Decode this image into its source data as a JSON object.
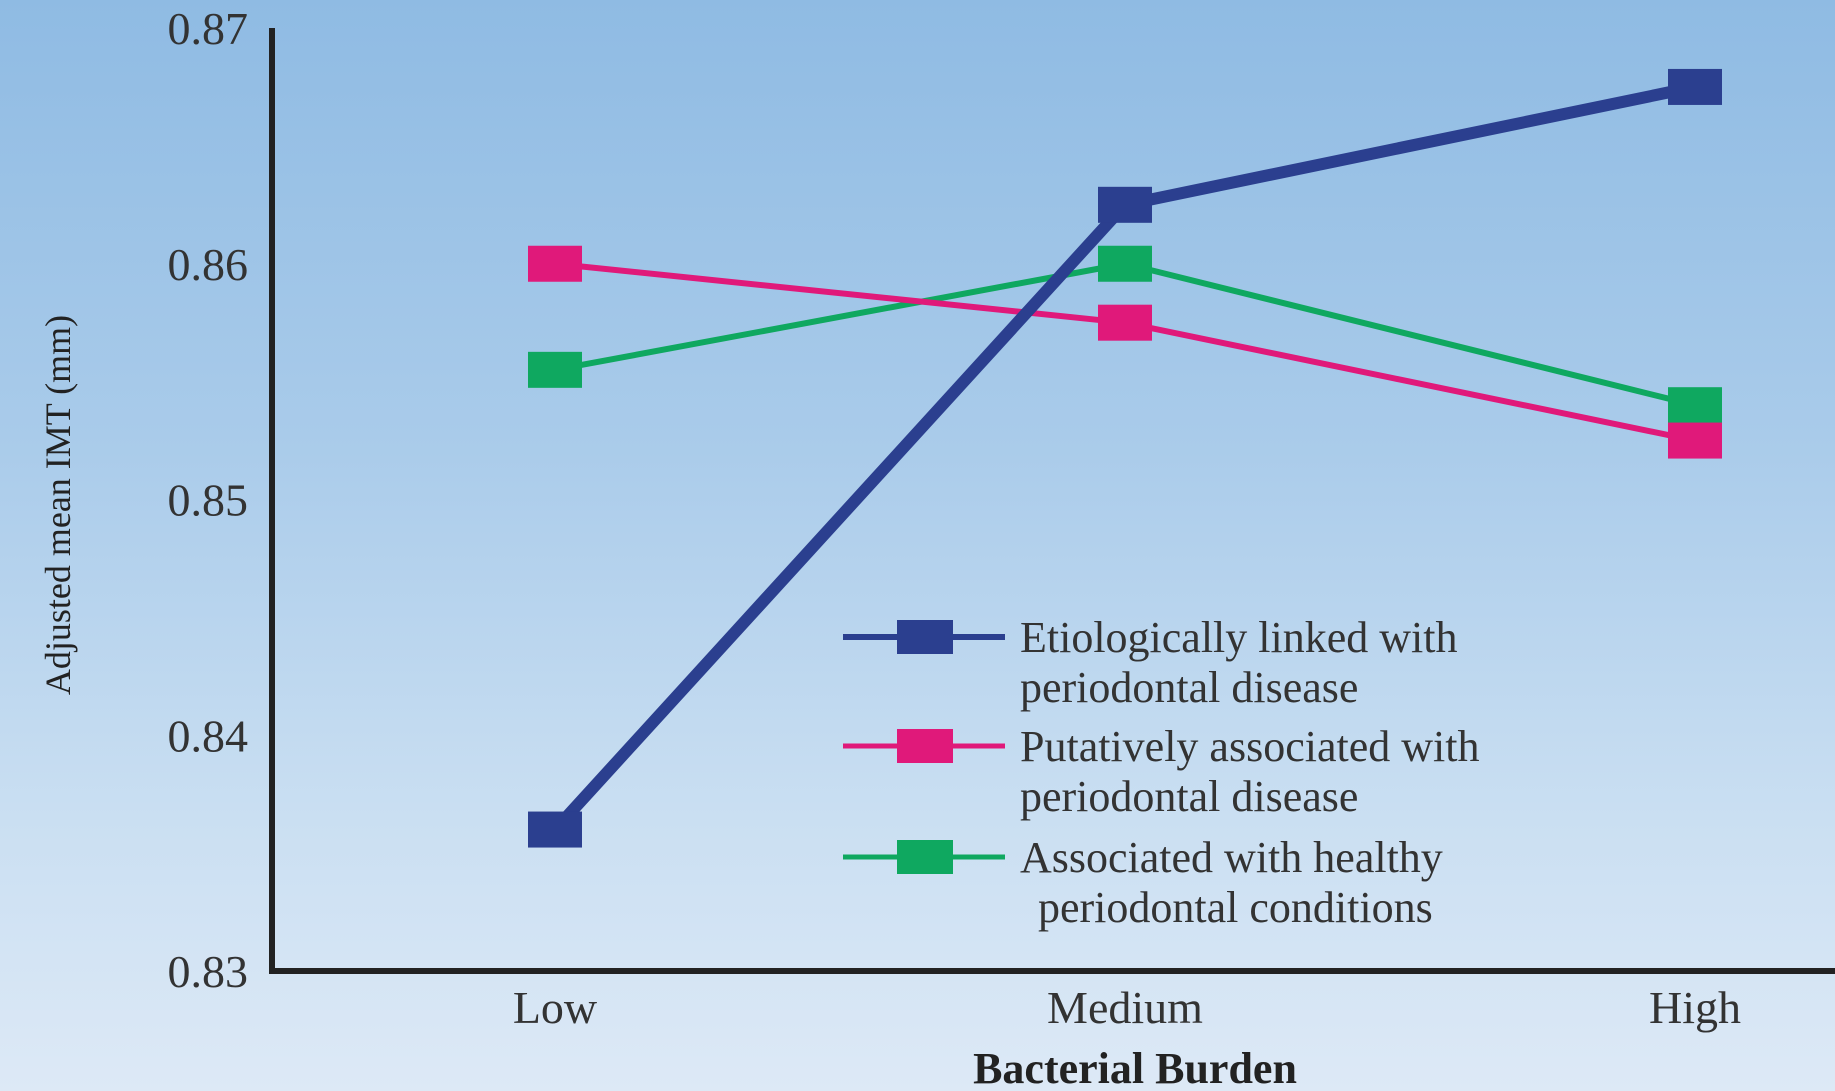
{
  "chart_data": {
    "type": "line",
    "title": "",
    "xlabel": "Bacterial Burden",
    "ylabel": "Adjusted mean IMT (mm)",
    "categories": [
      "Low",
      "Medium",
      "High"
    ],
    "ylim": [
      0.83,
      0.87
    ],
    "yticks": [
      "0.83",
      "0.84",
      "0.85",
      "0.86",
      "0.87"
    ],
    "grid": false,
    "legend_position": "bottom-right",
    "series": [
      {
        "name": "Etiologically linked with periodontal disease",
        "name_lines": [
          "Etiologically linked with",
          "periodontal disease"
        ],
        "color": "#2b3f8f",
        "values": [
          0.836,
          0.8625,
          0.8675
        ]
      },
      {
        "name": "Putatively associated with periodontal disease",
        "name_lines": [
          "Putatively associated with",
          "periodontal disease"
        ],
        "color": "#e0197a",
        "values": [
          0.86,
          0.8575,
          0.8525
        ]
      },
      {
        "name": "Associated with healthy periodontal conditions",
        "name_lines": [
          "Associated with healthy",
          "periodontal conditions"
        ],
        "color": "#0fa860",
        "values": [
          0.8555,
          0.86,
          0.854
        ]
      }
    ]
  }
}
